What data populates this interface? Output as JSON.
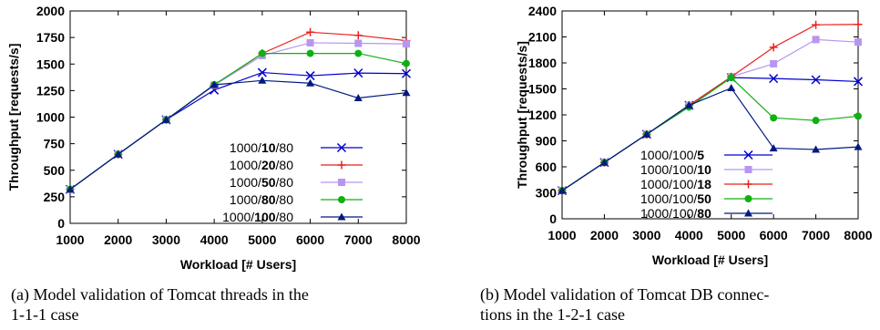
{
  "chart_data": [
    {
      "type": "line",
      "caption_line1": "(a) Model validation of Tomcat threads in the",
      "caption_line2": "1-1-1 case",
      "xlabel": "Workload [# Users]",
      "ylabel": "Throughput [requests/s]",
      "x": [
        1000,
        2000,
        3000,
        4000,
        5000,
        6000,
        7000,
        8000
      ],
      "xticks": [
        "1000",
        "2000",
        "3000",
        "4000",
        "5000",
        "6000",
        "7000",
        "8000"
      ],
      "yticks": [
        "0",
        "250",
        "500",
        "750",
        "1000",
        "1250",
        "1500",
        "1750",
        "2000"
      ],
      "ylim": [
        0,
        2000
      ],
      "xlim": [
        1000,
        8000
      ],
      "legend_position": "bottom-right",
      "series": [
        {
          "name": "1000/10/80",
          "label_pre": "1000/",
          "label_bold": "10",
          "label_post": "/80",
          "color": "#0000cc",
          "marker": "x",
          "values": [
            320,
            650,
            975,
            1255,
            1420,
            1390,
            1415,
            1410
          ]
        },
        {
          "name": "1000/20/80",
          "label_pre": "1000/",
          "label_bold": "20",
          "label_post": "/80",
          "color": "#e8201e",
          "marker": "plus",
          "values": [
            320,
            650,
            975,
            1300,
            1600,
            1800,
            1770,
            1720
          ]
        },
        {
          "name": "1000/50/80",
          "label_pre": "1000/",
          "label_bold": "50",
          "label_post": "/80",
          "color": "#b896f0",
          "marker": "square",
          "values": [
            320,
            650,
            975,
            1300,
            1580,
            1700,
            1695,
            1690
          ]
        },
        {
          "name": "1000/80/80",
          "label_pre": "1000/",
          "label_bold": "80",
          "label_post": "/80",
          "color": "#10b010",
          "marker": "circle",
          "values": [
            320,
            650,
            975,
            1305,
            1600,
            1600,
            1600,
            1505
          ]
        },
        {
          "name": "1000/100/80",
          "label_pre": "1000/",
          "label_bold": "100",
          "label_post": "/80",
          "color": "#001a80",
          "marker": "triangle",
          "values": [
            320,
            650,
            975,
            1305,
            1345,
            1320,
            1180,
            1230
          ]
        }
      ]
    },
    {
      "type": "line",
      "caption_line1": "(b) Model validation of Tomcat DB connec-",
      "caption_line2": "tions in the 1-2-1 case",
      "xlabel": "Workload [# Users]",
      "ylabel": "Throughput [requests/s]",
      "x": [
        1000,
        2000,
        3000,
        4000,
        5000,
        6000,
        7000,
        8000
      ],
      "xticks": [
        "1000",
        "2000",
        "3000",
        "4000",
        "5000",
        "6000",
        "7000",
        "8000"
      ],
      "yticks": [
        "0",
        "300",
        "600",
        "900",
        "1200",
        "1500",
        "1800",
        "2100",
        "2400"
      ],
      "ylim": [
        0,
        2400
      ],
      "xlim": [
        1000,
        8000
      ],
      "legend_position": "bottom-center",
      "series": [
        {
          "name": "1000/100/5",
          "label_pre": "1000/100/",
          "label_bold": "5",
          "label_post": "",
          "color": "#0000cc",
          "marker": "x",
          "values": [
            325,
            650,
            975,
            1310,
            1630,
            1620,
            1605,
            1585
          ]
        },
        {
          "name": "1000/100/10",
          "label_pre": "1000/100/",
          "label_bold": "10",
          "label_post": "",
          "color": "#b896f0",
          "marker": "square",
          "values": [
            325,
            650,
            975,
            1310,
            1640,
            1790,
            2070,
            2040
          ]
        },
        {
          "name": "1000/100/18",
          "label_pre": "1000/100/",
          "label_bold": "18",
          "label_post": "",
          "color": "#e8201e",
          "marker": "plus",
          "values": [
            325,
            650,
            975,
            1310,
            1640,
            1980,
            2240,
            2245
          ]
        },
        {
          "name": "1000/100/50",
          "label_pre": "1000/100/",
          "label_bold": "50",
          "label_post": "",
          "color": "#10b010",
          "marker": "circle",
          "values": [
            325,
            650,
            975,
            1290,
            1630,
            1165,
            1135,
            1185
          ]
        },
        {
          "name": "1000/100/80",
          "label_pre": "1000/100/",
          "label_bold": "80",
          "label_post": "",
          "color": "#001a80",
          "marker": "triangle",
          "values": [
            325,
            650,
            975,
            1310,
            1510,
            815,
            800,
            830
          ]
        }
      ]
    }
  ]
}
